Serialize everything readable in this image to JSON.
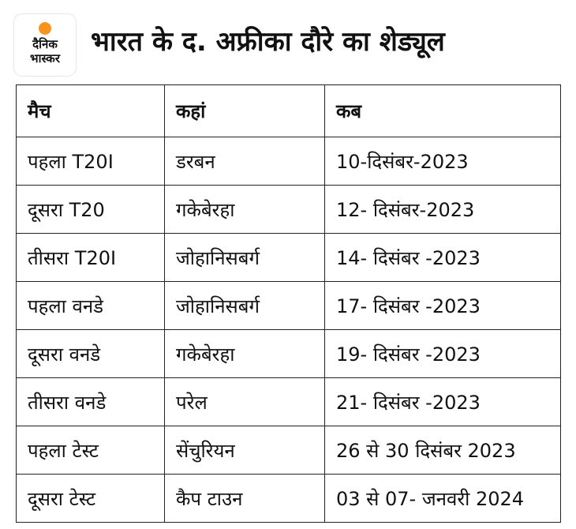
{
  "logo": {
    "line1": "दैनिक",
    "line2": "भास्कर",
    "accent": "#f7931e"
  },
  "title": "भारत के द. अफ्रीका दौरे का शेड्यूल",
  "table": {
    "headers": [
      "मैच",
      "कहां",
      "कब"
    ],
    "rows": [
      [
        "पहला T20I",
        "डरबन",
        "10-दिसंबर-2023"
      ],
      [
        "दूसरा T20",
        "गकेबेरहा",
        "12- दिसंबर-2023"
      ],
      [
        "तीसरा T20I",
        "जोहानिसबर्ग",
        "14- दिसंबर -2023"
      ],
      [
        "पहला वनडे",
        "जोहानिसबर्ग",
        "17- दिसंबर -2023"
      ],
      [
        "दूसरा वनडे",
        "गकेबेरहा",
        "19- दिसंबर -2023"
      ],
      [
        "तीसरा वनडे",
        "परेल",
        "21- दिसंबर -2023"
      ],
      [
        "पहला टेस्ट",
        "सेंचुरियन",
        "26 से 30 दिसंबर 2023"
      ],
      [
        "दूसरा टेस्ट",
        "कैप टाउन",
        "03 से 07- जनवरी 2024"
      ]
    ]
  }
}
